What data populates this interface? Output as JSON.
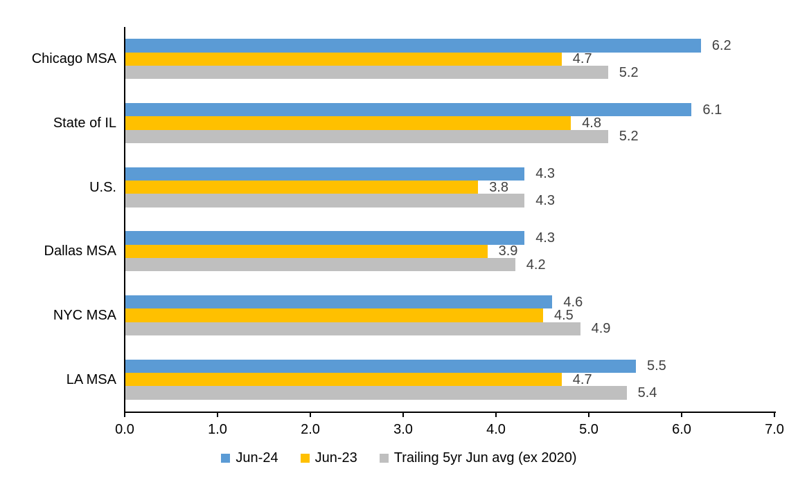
{
  "chart_data": {
    "type": "bar",
    "orientation": "horizontal",
    "categories": [
      "Chicago MSA",
      "State of IL",
      "U.S.",
      "Dallas MSA",
      "NYC MSA",
      "LA MSA"
    ],
    "series": [
      {
        "name": "Jun-24",
        "color": "#5B9BD5",
        "values": [
          6.2,
          6.1,
          4.3,
          4.3,
          4.6,
          5.5
        ]
      },
      {
        "name": "Jun-23",
        "color": "#FFC000",
        "values": [
          4.7,
          4.8,
          3.8,
          3.9,
          4.5,
          4.7
        ]
      },
      {
        "name": "Trailing 5yr Jun avg (ex 2020)",
        "color": "#BFBFBF",
        "values": [
          5.2,
          5.2,
          4.3,
          4.2,
          4.9,
          5.4
        ]
      }
    ],
    "xlim": [
      0,
      7
    ],
    "x_tick_labels": [
      "0.0",
      "1.0",
      "2.0",
      "3.0",
      "4.0",
      "5.0",
      "6.0",
      "7.0"
    ],
    "value_labels_decimals": 1,
    "grid": false,
    "legend_position": "bottom"
  },
  "colors": {
    "axis": "#000000",
    "value_label": "#404040",
    "text": "#000000",
    "background": "#FFFFFF"
  }
}
